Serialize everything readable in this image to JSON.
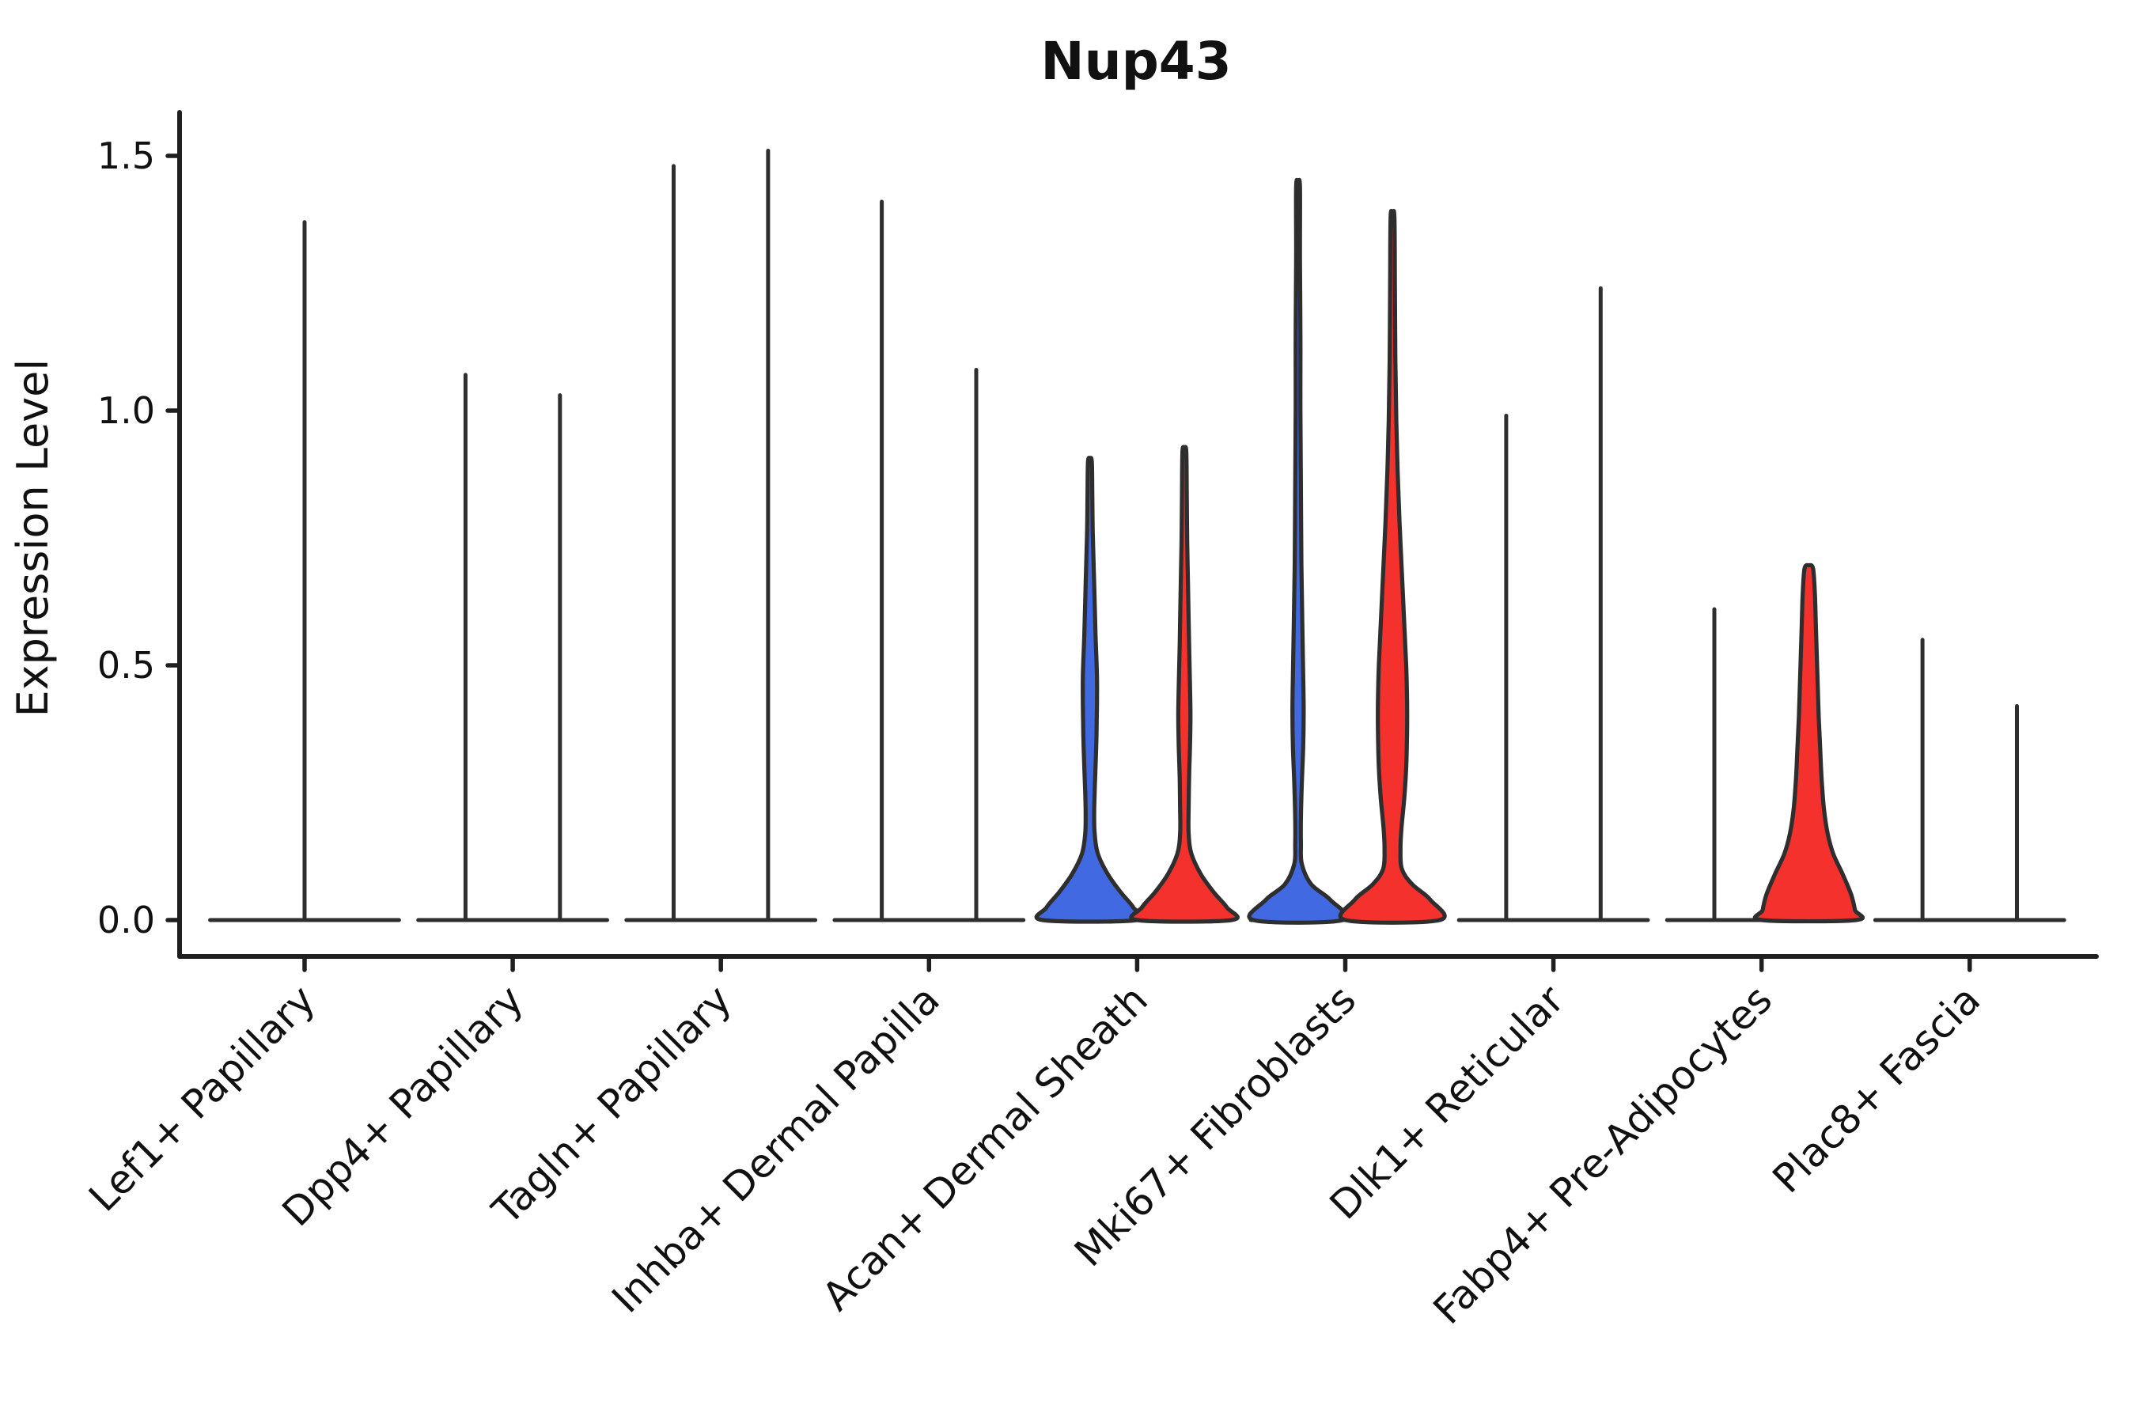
{
  "page": {
    "background": "#ffffff"
  },
  "chart_data": {
    "type": "violin",
    "title": "Nup43",
    "ylabel": "Expression Level",
    "xlabel": "",
    "grid": false,
    "legend_position": "none",
    "ylim": [
      -0.07,
      1.59
    ],
    "yticks": {
      "values": [
        0,
        0.5,
        1.0,
        1.5
      ],
      "labels": [
        "0.0",
        "0.5",
        "1.0",
        "1.5"
      ]
    },
    "colors": {
      "blue": "#4169E1",
      "red": "#F4312C",
      "outline": "#2E2E2E",
      "axis": "#1F1F1F",
      "text": "#111111"
    },
    "categories": [
      "Lef1+ Papillary",
      "Dpp4+ Papillary",
      "Tagln+ Papillary",
      "Inhba+ Dermal Papilla",
      "Acan+ Dermal Sheath",
      "Mki67+ Fibroblasts",
      "Dlk1+ Reticular",
      "Fabp4+ Pre-Adipocytes",
      "Plac8+ Fascia"
    ],
    "violins": [
      {
        "category": "Lef1+ Papillary",
        "items": [
          {
            "slot": 0,
            "kind": "spike",
            "color": null,
            "max": 1.37
          }
        ]
      },
      {
        "category": "Dpp4+ Papillary",
        "items": [
          {
            "slot": -1,
            "kind": "spike",
            "color": null,
            "max": 1.07
          },
          {
            "slot": 1,
            "kind": "spike",
            "color": null,
            "max": 1.03
          }
        ]
      },
      {
        "category": "Tagln+ Papillary",
        "items": [
          {
            "slot": -1,
            "kind": "spike",
            "color": null,
            "max": 1.48
          },
          {
            "slot": 1,
            "kind": "spike",
            "color": null,
            "max": 1.51
          }
        ]
      },
      {
        "category": "Inhba+ Dermal Papilla",
        "items": [
          {
            "slot": -1,
            "kind": "spike",
            "color": null,
            "max": 1.41
          },
          {
            "slot": 1,
            "kind": "spike",
            "color": null,
            "max": 1.08
          }
        ]
      },
      {
        "category": "Acan+ Dermal Sheath",
        "items": [
          {
            "slot": -1,
            "kind": "violin",
            "color": "blue",
            "max": 0.9,
            "profile": [
              [
                0.9,
                0.04
              ],
              [
                0.84,
                0.05
              ],
              [
                0.76,
                0.06
              ],
              [
                0.66,
                0.09
              ],
              [
                0.56,
                0.12
              ],
              [
                0.48,
                0.15
              ],
              [
                0.42,
                0.15
              ],
              [
                0.36,
                0.14
              ],
              [
                0.3,
                0.12
              ],
              [
                0.25,
                0.1
              ],
              [
                0.21,
                0.09
              ],
              [
                0.17,
                0.1
              ],
              [
                0.13,
                0.17
              ],
              [
                0.09,
                0.38
              ],
              [
                0.055,
                0.65
              ],
              [
                0.025,
                0.92
              ],
              [
                0,
                1.0
              ]
            ]
          },
          {
            "slot": 1,
            "kind": "violin",
            "color": "red",
            "max": 0.92,
            "profile": [
              [
                0.92,
                0.04
              ],
              [
                0.84,
                0.05
              ],
              [
                0.74,
                0.06
              ],
              [
                0.64,
                0.08
              ],
              [
                0.54,
                0.1
              ],
              [
                0.46,
                0.12
              ],
              [
                0.4,
                0.13
              ],
              [
                0.34,
                0.12
              ],
              [
                0.28,
                0.1
              ],
              [
                0.22,
                0.09
              ],
              [
                0.17,
                0.09
              ],
              [
                0.13,
                0.15
              ],
              [
                0.09,
                0.35
              ],
              [
                0.055,
                0.62
              ],
              [
                0.025,
                0.9
              ],
              [
                0,
                1.0
              ]
            ]
          }
        ]
      },
      {
        "category": "Mki67+ Fibroblasts",
        "items": [
          {
            "slot": -1,
            "kind": "violin",
            "color": "blue",
            "max": 1.44,
            "profile": [
              [
                1.44,
                0.04
              ],
              [
                1.3,
                0.04
              ],
              [
                1.15,
                0.05
              ],
              [
                1.0,
                0.05
              ],
              [
                0.85,
                0.06
              ],
              [
                0.7,
                0.07
              ],
              [
                0.58,
                0.09
              ],
              [
                0.48,
                0.11
              ],
              [
                0.41,
                0.12
              ],
              [
                0.34,
                0.11
              ],
              [
                0.27,
                0.08
              ],
              [
                0.2,
                0.06
              ],
              [
                0.15,
                0.06
              ],
              [
                0.11,
                0.08
              ],
              [
                0.07,
                0.28
              ],
              [
                0.04,
                0.68
              ],
              [
                0,
                0.95
              ]
            ]
          },
          {
            "slot": 1,
            "kind": "violin",
            "color": "red",
            "max": 1.38,
            "profile": [
              [
                1.38,
                0.04
              ],
              [
                1.25,
                0.05
              ],
              [
                1.1,
                0.06
              ],
              [
                0.98,
                0.08
              ],
              [
                0.88,
                0.11
              ],
              [
                0.78,
                0.15
              ],
              [
                0.68,
                0.2
              ],
              [
                0.58,
                0.25
              ],
              [
                0.5,
                0.29
              ],
              [
                0.43,
                0.31
              ],
              [
                0.37,
                0.31
              ],
              [
                0.3,
                0.29
              ],
              [
                0.24,
                0.25
              ],
              [
                0.18,
                0.19
              ],
              [
                0.14,
                0.17
              ],
              [
                0.1,
                0.2
              ],
              [
                0.07,
                0.42
              ],
              [
                0.04,
                0.8
              ],
              [
                0,
                1.0
              ]
            ]
          }
        ]
      },
      {
        "category": "Dlk1+ Reticular",
        "items": [
          {
            "slot": -1,
            "kind": "spike",
            "color": null,
            "max": 0.99
          },
          {
            "slot": 1,
            "kind": "spike",
            "color": null,
            "max": 1.24
          }
        ]
      },
      {
        "category": "Fabp4+ Pre-Adipocytes",
        "items": [
          {
            "slot": -1,
            "kind": "spike",
            "color": null,
            "max": 0.61
          },
          {
            "slot": 1,
            "kind": "violin",
            "color": "red",
            "max": 0.69,
            "profile": [
              [
                0.69,
                0.09
              ],
              [
                0.64,
                0.13
              ],
              [
                0.58,
                0.15
              ],
              [
                0.52,
                0.17
              ],
              [
                0.46,
                0.19
              ],
              [
                0.4,
                0.21
              ],
              [
                0.34,
                0.24
              ],
              [
                0.28,
                0.27
              ],
              [
                0.22,
                0.32
              ],
              [
                0.17,
                0.4
              ],
              [
                0.13,
                0.52
              ],
              [
                0.09,
                0.72
              ],
              [
                0.05,
                0.9
              ],
              [
                0.02,
                0.98
              ],
              [
                0,
                1.0
              ]
            ]
          }
        ]
      },
      {
        "category": "Plac8+ Fascia",
        "items": [
          {
            "slot": -1,
            "kind": "spike",
            "color": null,
            "max": 0.55
          },
          {
            "slot": 1,
            "kind": "spike",
            "color": null,
            "max": 0.42
          }
        ]
      }
    ]
  }
}
